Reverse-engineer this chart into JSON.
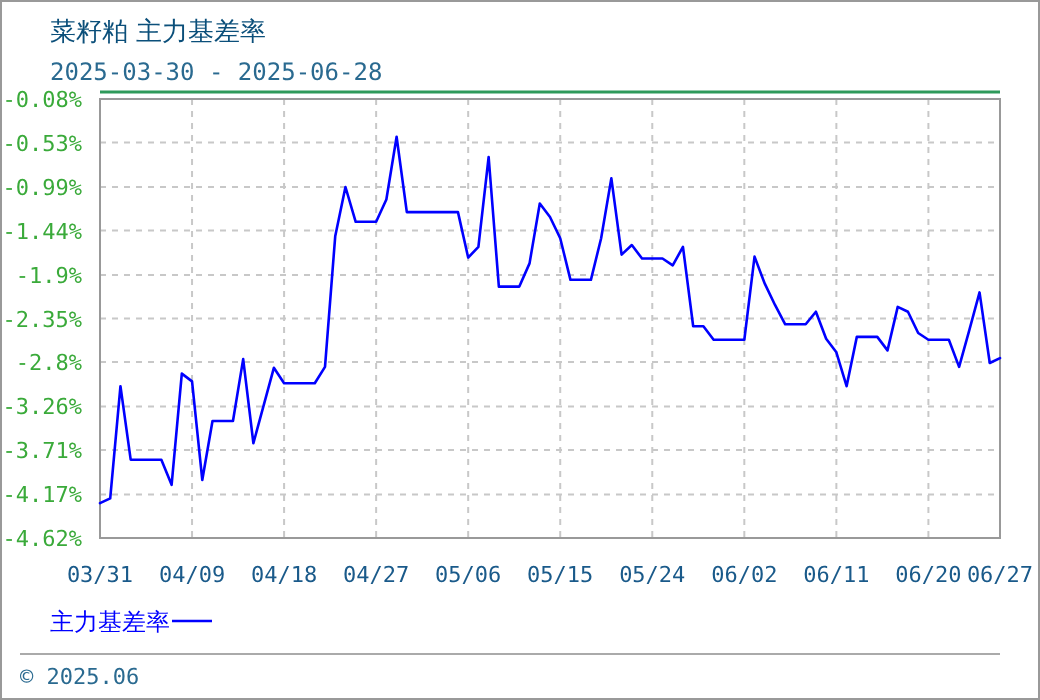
{
  "chart_data": {
    "type": "line",
    "title": "菜籽粕 主力基差率",
    "subtitle": "2025-03-30 - 2025-06-28",
    "legend": "bottom left",
    "grid": true,
    "marker": "none",
    "line_style": "solid",
    "xlim": [
      "2025-03-31",
      "2025-06-27"
    ],
    "xticks": [
      {
        "value": "2025-03-31",
        "label": "03/31"
      },
      {
        "value": "2025-04-09",
        "label": "04/09"
      },
      {
        "value": "2025-04-18",
        "label": "04/18"
      },
      {
        "value": "2025-04-27",
        "label": "04/27"
      },
      {
        "value": "2025-05-06",
        "label": "05/06"
      },
      {
        "value": "2025-05-15",
        "label": "05/15"
      },
      {
        "value": "2025-05-24",
        "label": "05/24"
      },
      {
        "value": "2025-06-02",
        "label": "06/02"
      },
      {
        "value": "2025-06-11",
        "label": "06/11"
      },
      {
        "value": "2025-06-20",
        "label": "06/20"
      },
      {
        "value": "2025-06-27",
        "label": "06/27"
      }
    ],
    "ylim": [
      -4.62,
      -0.08
    ],
    "yticks": [
      {
        "value": -0.08,
        "label": "-0.08%"
      },
      {
        "value": -0.53,
        "label": "-0.53%"
      },
      {
        "value": -0.99,
        "label": "-0.99%"
      },
      {
        "value": -1.44,
        "label": "-1.44%"
      },
      {
        "value": -1.9,
        "label": "-1.9%"
      },
      {
        "value": -2.35,
        "label": "-2.35%"
      },
      {
        "value": -2.8,
        "label": "-2.8%"
      },
      {
        "value": -3.26,
        "label": "-3.26%"
      },
      {
        "value": -3.71,
        "label": "-3.71%"
      },
      {
        "value": -4.17,
        "label": "-4.17%"
      },
      {
        "value": -4.62,
        "label": "-4.62%"
      }
    ],
    "x": [
      "2025-03-31",
      "2025-04-01",
      "2025-04-02",
      "2025-04-03",
      "2025-04-06",
      "2025-04-07",
      "2025-04-08",
      "2025-04-09",
      "2025-04-10",
      "2025-04-11",
      "2025-04-13",
      "2025-04-14",
      "2025-04-15",
      "2025-04-17",
      "2025-04-18",
      "2025-04-21",
      "2025-04-22",
      "2025-04-23",
      "2025-04-24",
      "2025-04-25",
      "2025-04-27",
      "2025-04-28",
      "2025-04-29",
      "2025-04-30",
      "2025-05-05",
      "2025-05-06",
      "2025-05-07",
      "2025-05-08",
      "2025-05-09",
      "2025-05-11",
      "2025-05-12",
      "2025-05-13",
      "2025-05-14",
      "2025-05-15",
      "2025-05-16",
      "2025-05-18",
      "2025-05-19",
      "2025-05-20",
      "2025-05-21",
      "2025-05-22",
      "2025-05-23",
      "2025-05-25",
      "2025-05-26",
      "2025-05-27",
      "2025-05-28",
      "2025-05-29",
      "2025-05-30",
      "2025-06-02",
      "2025-06-03",
      "2025-06-04",
      "2025-06-05",
      "2025-06-06",
      "2025-06-08",
      "2025-06-09",
      "2025-06-10",
      "2025-06-11",
      "2025-06-12",
      "2025-06-13",
      "2025-06-15",
      "2025-06-16",
      "2025-06-17",
      "2025-06-18",
      "2025-06-19",
      "2025-06-20",
      "2025-06-22",
      "2025-06-23",
      "2025-06-24",
      "2025-06-25",
      "2025-06-26",
      "2025-06-27"
    ],
    "series": [
      {
        "name": "主力基差率",
        "color": "#0000ff",
        "values": [
          -4.26,
          -4.21,
          -3.05,
          -3.81,
          -3.81,
          -4.07,
          -2.92,
          -3.0,
          -4.02,
          -3.41,
          -3.41,
          -2.77,
          -3.64,
          -2.86,
          -3.02,
          -3.02,
          -2.85,
          -1.5,
          -0.99,
          -1.35,
          -1.35,
          -1.12,
          -0.47,
          -1.25,
          -1.25,
          -1.72,
          -1.61,
          -0.68,
          -2.02,
          -2.02,
          -1.78,
          -1.16,
          -1.3,
          -1.52,
          -1.95,
          -1.95,
          -1.52,
          -0.9,
          -1.69,
          -1.59,
          -1.73,
          -1.73,
          -1.8,
          -1.61,
          -2.43,
          -2.43,
          -2.57,
          -2.57,
          -1.71,
          -1.99,
          -2.21,
          -2.41,
          -2.41,
          -2.28,
          -2.56,
          -2.7,
          -3.05,
          -2.54,
          -2.54,
          -2.68,
          -2.23,
          -2.28,
          -2.5,
          -2.57,
          -2.57,
          -2.85,
          -2.47,
          -2.08,
          -2.81,
          -2.76
        ]
      }
    ],
    "annotations": [
      "© 2025.06"
    ]
  }
}
